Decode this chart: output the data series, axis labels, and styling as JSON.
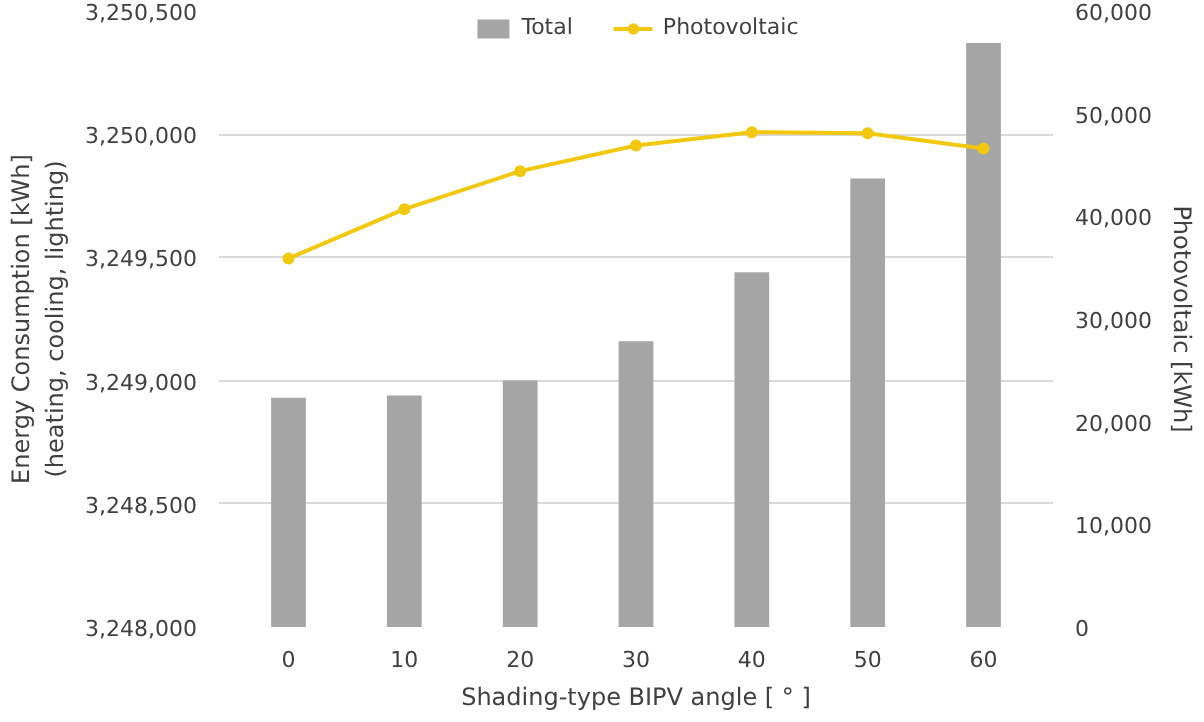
{
  "chart_data": {
    "type": "bar",
    "categories": [
      "0",
      "10",
      "20",
      "30",
      "40",
      "50",
      "60"
    ],
    "xlabel": "Shading-type BIPV angle [ ° ]",
    "ylabel": "Energy Consumption [kWh]\n(heating, cooling, lighting)",
    "y2label": "Photovoltaic [kWh]",
    "series": [
      {
        "name": "Total",
        "color": "#a5a5a5",
        "values": [
          3248930,
          3248940,
          3249000,
          3249160,
          3249440,
          3249820,
          3250370
        ]
      },
      {
        "name": "Photovoltaic",
        "type": "line",
        "axis": "y2",
        "color": "#f2c80f",
        "marker": "circle",
        "values": [
          35900,
          40700,
          44400,
          46900,
          48200,
          48100,
          46600
        ]
      }
    ],
    "ylim": [
      3248000,
      3250500
    ],
    "yticks": [
      {
        "value": 3248000,
        "label": "3,248,000"
      },
      {
        "value": 3248500,
        "label": "3,248,500"
      },
      {
        "value": 3249000,
        "label": "3,249,000"
      },
      {
        "value": 3249500,
        "label": "3,249,500"
      },
      {
        "value": 3250000,
        "label": "3,250,000"
      },
      {
        "value": 3250500,
        "label": "3,250,500"
      }
    ],
    "y2lim": [
      0,
      60000
    ],
    "y2ticks": [
      0,
      {
        "value": 10000,
        "label": "10,000"
      },
      {
        "value": 20000,
        "label": "20,000"
      },
      {
        "value": 30000,
        "label": "30,000"
      },
      {
        "value": 40000,
        "label": "40,000"
      },
      {
        "value": 50000,
        "label": "50,000"
      },
      {
        "value": 60000,
        "label": "60,000"
      }
    ],
    "grid": "y",
    "legend": "top"
  }
}
